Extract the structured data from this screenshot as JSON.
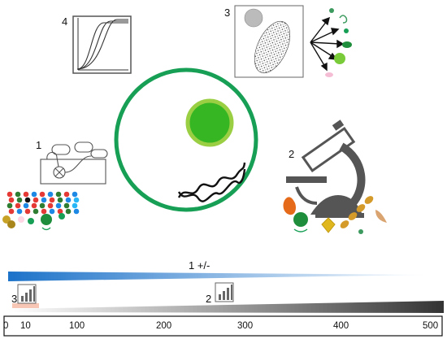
{
  "panels": {
    "p1": {
      "label": "1"
    },
    "p2": {
      "label": "2"
    },
    "p3": {
      "label": "3"
    },
    "p4": {
      "label": "4"
    }
  },
  "gradients": {
    "blue_label": "1 +/-",
    "gray_label": "2",
    "pink_label": "3"
  },
  "scale": {
    "ticks": [
      "0",
      "10",
      "100",
      "200",
      "300",
      "400",
      "500"
    ]
  },
  "colors": {
    "cell_ring": "#17a055",
    "nucleus": "#37b624",
    "nucleus_ring": "#9bcf43",
    "blue": "#1c72c9",
    "gray": "#444444",
    "pink": "#f7c6b4"
  }
}
